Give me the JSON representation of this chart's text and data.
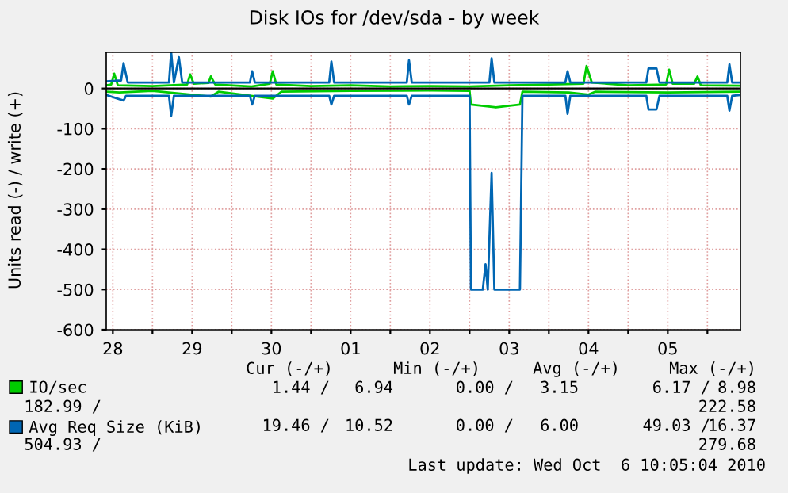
{
  "chart_data": {
    "type": "line",
    "title": "Disk IOs for /dev/sda - by week",
    "ylabel": "Units read (-) / write (+)",
    "xlim": [
      "2010-09-28T10:00",
      "2010-10-06T10:00"
    ],
    "xticks": [
      {
        "value": "2010-09-28T12:00",
        "label": "28"
      },
      {
        "value": "2010-09-29T00:00",
        "label": null
      },
      {
        "value": "2010-09-29T12:00",
        "label": "29"
      },
      {
        "value": "2010-09-30T00:00",
        "label": null
      },
      {
        "value": "2010-09-30T12:00",
        "label": "30"
      },
      {
        "value": "2010-10-01T00:00",
        "label": null
      },
      {
        "value": "2010-10-01T12:00",
        "label": "01"
      },
      {
        "value": "2010-10-02T00:00",
        "label": null
      },
      {
        "value": "2010-10-02T12:00",
        "label": "02"
      },
      {
        "value": "2010-10-03T00:00",
        "label": null
      },
      {
        "value": "2010-10-03T12:00",
        "label": "03"
      },
      {
        "value": "2010-10-04T00:00",
        "label": null
      },
      {
        "value": "2010-10-04T12:00",
        "label": "04"
      },
      {
        "value": "2010-10-05T00:00",
        "label": null
      },
      {
        "value": "2010-10-05T12:00",
        "label": "05"
      },
      {
        "value": "2010-10-06T00:00",
        "label": null
      }
    ],
    "ylim": [
      -600,
      90
    ],
    "yticks": [
      -600,
      -500,
      -400,
      -300,
      -200,
      -100,
      0
    ],
    "grid": true,
    "legend": "bottom",
    "line_style": "solid",
    "marker": "none",
    "series": [
      {
        "name": "IO/sec",
        "color": "#00cc00",
        "x": [
          "2010-09-28T10:00",
          "2010-09-28T11:30",
          "2010-09-28T12:25",
          "2010-09-28T13:30",
          "2010-09-29T00:00",
          "2010-09-29T10:30",
          "2010-09-29T11:25",
          "2010-09-29T12:30",
          "2010-09-29T17:00",
          "2010-09-29T17:40",
          "2010-09-29T19:00",
          "2010-09-30T06:00",
          "2010-09-30T11:30",
          "2010-09-30T12:25",
          "2010-09-30T13:30",
          "2010-10-01T00:00",
          "2010-10-01T12:00",
          "2010-10-02T00:00",
          "2010-10-02T12:00",
          "2010-10-03T00:00",
          "2010-10-03T12:00",
          "2010-10-04T00:00",
          "2010-10-04T10:30",
          "2010-10-04T11:25",
          "2010-10-04T13:00",
          "2010-10-05T00:00",
          "2010-10-05T11:30",
          "2010-10-05T12:25",
          "2010-10-05T13:30",
          "2010-10-05T20:00",
          "2010-10-05T21:00",
          "2010-10-05T22:00",
          "2010-10-06T10:00"
        ],
        "values": [
          8,
          10,
          37,
          8,
          6,
          10,
          35,
          12,
          14,
          30,
          10,
          5,
          12,
          43,
          10,
          6,
          8,
          5,
          6,
          5,
          8,
          10,
          12,
          56,
          15,
          8,
          10,
          47,
          12,
          12,
          30,
          8,
          7
        ]
      },
      {
        "color": "#00cc00",
        "x": [
          "2010-09-28T10:00",
          "2010-09-28T14:00",
          "2010-09-29T00:00",
          "2010-09-29T17:40",
          "2010-09-29T20:00",
          "2010-09-30T12:25",
          "2010-09-30T15:00",
          "2010-10-01T12:00",
          "2010-10-02T12:00",
          "2010-10-03T00:00",
          "2010-10-03T00:25",
          "2010-10-03T08:00",
          "2010-10-03T15:15",
          "2010-10-03T16:00",
          "2010-10-04T06:00",
          "2010-10-04T12:00",
          "2010-10-04T14:00",
          "2010-10-05T12:00",
          "2010-10-06T10:00"
        ],
        "values": [
          -8,
          -10,
          -6,
          -20,
          -8,
          -25,
          -8,
          -6,
          -5,
          -6,
          -40,
          -47,
          -40,
          -8,
          -10,
          -15,
          -8,
          -10,
          -8
        ]
      },
      {
        "name": "Avg Req Size (KiB)",
        "color": "#0066b3",
        "x": [
          "2010-09-28T10:00",
          "2010-09-28T14:30",
          "2010-09-28T15:15",
          "2010-09-28T16:30",
          "2010-09-29T05:00",
          "2010-09-29T05:40",
          "2010-09-29T06:30",
          "2010-09-29T08:00",
          "2010-09-29T09:00",
          "2010-09-30T05:30",
          "2010-09-30T06:10",
          "2010-09-30T07:00",
          "2010-10-01T05:30",
          "2010-10-01T06:10",
          "2010-10-01T07:00",
          "2010-10-02T05:00",
          "2010-10-02T05:40",
          "2010-10-02T06:30",
          "2010-10-03T06:00",
          "2010-10-03T06:40",
          "2010-10-03T07:30",
          "2010-10-04T05:00",
          "2010-10-04T05:40",
          "2010-10-04T06:30",
          "2010-10-05T05:30",
          "2010-10-05T06:10",
          "2010-10-05T08:35",
          "2010-10-05T09:30",
          "2010-10-06T06:00",
          "2010-10-06T06:40",
          "2010-10-06T07:30",
          "2010-10-06T10:00"
        ],
        "values": [
          18,
          20,
          63,
          15,
          15,
          90,
          15,
          78,
          15,
          15,
          43,
          15,
          15,
          67,
          15,
          15,
          70,
          15,
          15,
          75,
          15,
          15,
          43,
          15,
          15,
          50,
          50,
          15,
          15,
          60,
          15,
          15
        ]
      },
      {
        "color": "#0066b3",
        "x": [
          "2010-09-28T10:00",
          "2010-09-28T15:15",
          "2010-09-28T16:00",
          "2010-09-29T05:00",
          "2010-09-29T05:40",
          "2010-09-29T06:30",
          "2010-09-30T05:30",
          "2010-09-30T06:10",
          "2010-09-30T07:00",
          "2010-10-01T05:30",
          "2010-10-01T06:10",
          "2010-10-01T07:00",
          "2010-10-02T05:00",
          "2010-10-02T05:40",
          "2010-10-02T06:30",
          "2010-10-03T00:00",
          "2010-10-03T00:25",
          "2010-10-03T04:00",
          "2010-10-03T04:50",
          "2010-10-03T05:30",
          "2010-10-03T06:40",
          "2010-10-03T07:30",
          "2010-10-03T15:15",
          "2010-10-03T16:00",
          "2010-10-04T05:00",
          "2010-10-04T05:40",
          "2010-10-04T06:30",
          "2010-10-05T05:30",
          "2010-10-05T06:10",
          "2010-10-05T08:35",
          "2010-10-05T09:30",
          "2010-10-06T06:00",
          "2010-10-06T06:40",
          "2010-10-06T07:30",
          "2010-10-06T10:00"
        ],
        "values": [
          -16,
          -30,
          -18,
          -18,
          -68,
          -18,
          -18,
          -40,
          -18,
          -18,
          -40,
          -18,
          -18,
          -40,
          -18,
          -18,
          -500,
          -500,
          -437,
          -500,
          -210,
          -500,
          -500,
          -18,
          -18,
          -63,
          -18,
          -18,
          -52,
          -52,
          -18,
          -18,
          -55,
          -18,
          -16
        ]
      }
    ],
    "annotations": [
      "Cur (-/+)",
      "Min (-/+)",
      "Avg (-/+)",
      "Max (-/+)",
      "1.44 /",
      "6.94",
      "0.00 /",
      "3.15",
      "6.17 /",
      "8.98",
      "182.99 /",
      "222.58",
      "19.46 /",
      "10.52",
      "0.00 /",
      "6.00",
      "49.03 /",
      "16.37",
      "504.93 /",
      "279.68",
      "Last update: Wed Oct  6 10:05:04 2010"
    ]
  }
}
